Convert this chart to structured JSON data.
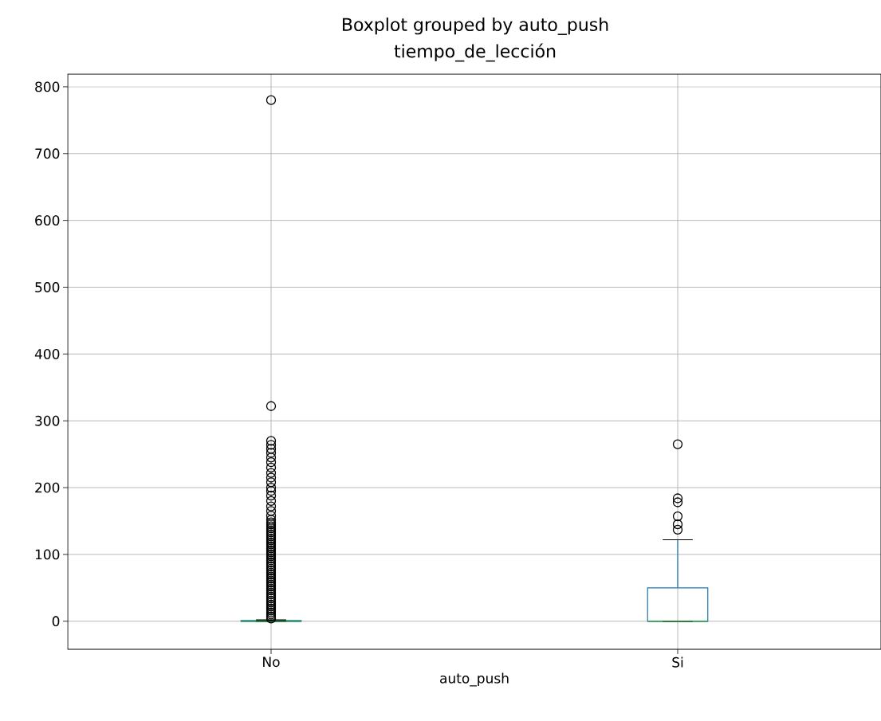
{
  "chart_data": {
    "type": "box",
    "title": "Boxplot grouped by auto_push",
    "subtitle": "tiempo_de_lección",
    "xlabel": "auto_push",
    "categories": [
      "No",
      "Si"
    ],
    "boxes": [
      {
        "low": 0,
        "q1": 0,
        "median": 0,
        "q3": 1,
        "high": 2,
        "outliers": [
          4,
          7,
          10,
          13,
          16,
          19,
          22,
          25,
          28,
          31,
          34,
          37,
          40,
          43,
          46,
          49,
          52,
          55,
          58,
          61,
          64,
          67,
          70,
          73,
          76,
          79,
          82,
          85,
          88,
          91,
          94,
          97,
          100,
          103,
          106,
          109,
          112,
          115,
          118,
          121,
          124,
          127,
          130,
          133,
          136,
          139,
          142,
          145,
          148,
          152,
          158,
          165,
          172,
          180,
          188,
          195,
          200,
          208,
          215,
          222,
          230,
          238,
          245,
          252,
          258,
          264,
          270,
          322,
          780
        ]
      },
      {
        "low": 0,
        "q1": 0,
        "median": 0,
        "q3": 50,
        "high": 122,
        "outliers": [
          137,
          145,
          157,
          178,
          184,
          265
        ]
      }
    ],
    "color": "#1f77b4",
    "ylim": [
      -42,
      819
    ],
    "yticks": [
      0,
      100,
      200,
      300,
      400,
      500,
      600,
      700,
      800
    ],
    "grid": true
  }
}
